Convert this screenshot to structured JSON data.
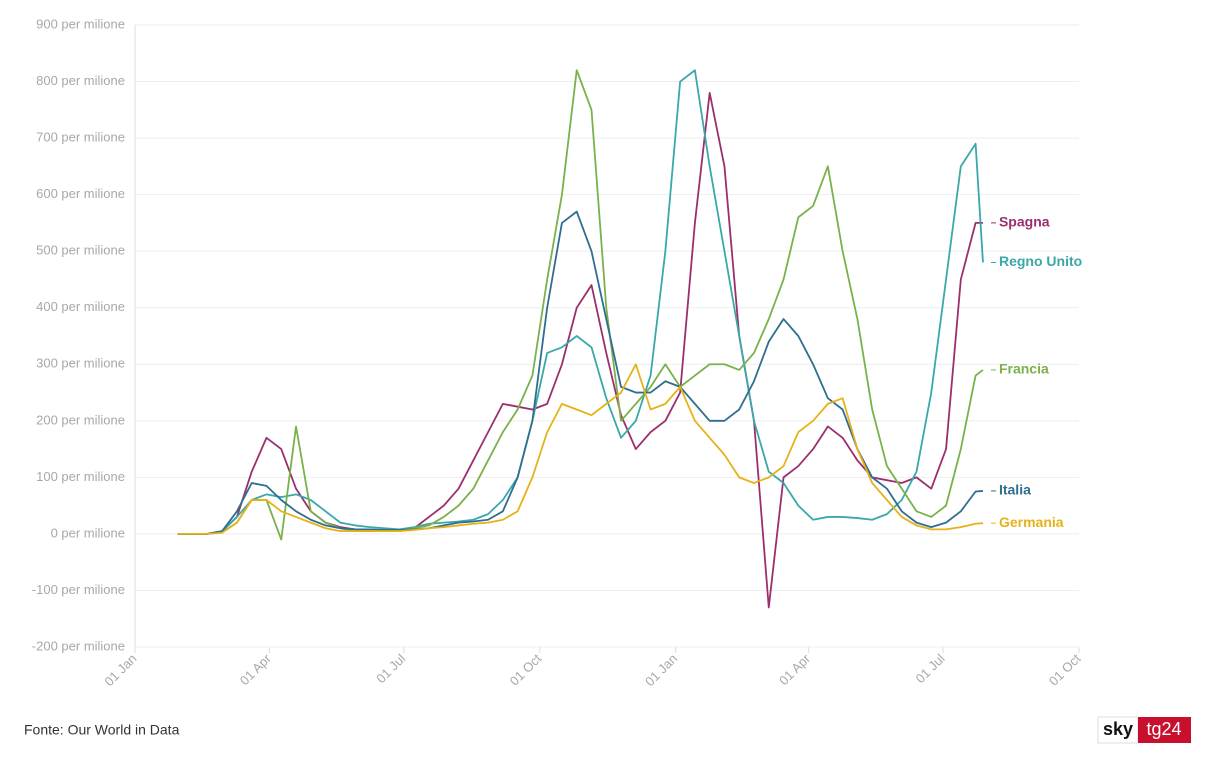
{
  "chart_data": {
    "type": "line",
    "x": [
      29,
      39,
      49,
      59,
      69,
      79,
      89,
      99,
      109,
      119,
      129,
      139,
      149,
      159,
      169,
      179,
      189,
      199,
      209,
      219,
      229,
      239,
      249,
      259,
      269,
      279,
      289,
      299,
      309,
      319,
      329,
      339,
      349,
      359,
      369,
      379,
      389,
      399,
      409,
      419,
      429,
      439,
      449,
      459,
      469,
      479,
      489,
      499,
      509,
      519,
      529,
      539,
      549,
      559,
      569,
      574
    ],
    "xlim": [
      0,
      639
    ],
    "xticks": [
      {
        "value": 0,
        "label": "01 Jan"
      },
      {
        "value": 91,
        "label": "01 Apr"
      },
      {
        "value": 182,
        "label": "01 Jul"
      },
      {
        "value": 274,
        "label": "01 Oct"
      },
      {
        "value": 366,
        "label": "01 Jan"
      },
      {
        "value": 456,
        "label": "01 Apr"
      },
      {
        "value": 547,
        "label": "01 Jul"
      },
      {
        "value": 639,
        "label": "01 Oct"
      }
    ],
    "ylim": [
      -200,
      900
    ],
    "yticks": [
      {
        "value": -200,
        "label": "-200 per milione"
      },
      {
        "value": -100,
        "label": "-100 per milione"
      },
      {
        "value": 0,
        "label": "0 per milione"
      },
      {
        "value": 100,
        "label": "100 per milione"
      },
      {
        "value": 200,
        "label": "200 per milione"
      },
      {
        "value": 300,
        "label": "300 per milione"
      },
      {
        "value": 400,
        "label": "400 per milione"
      },
      {
        "value": 500,
        "label": "500 per milione"
      },
      {
        "value": 600,
        "label": "600 per milione"
      },
      {
        "value": 700,
        "label": "700 per milione"
      },
      {
        "value": 800,
        "label": "800 per milione"
      },
      {
        "value": 900,
        "label": "900 per milione"
      }
    ],
    "grid": true,
    "series": [
      {
        "name": "Spagna",
        "color": "#9b2f6e",
        "values": [
          0,
          0,
          0,
          5,
          30,
          110,
          170,
          150,
          80,
          40,
          20,
          12,
          8,
          5,
          5,
          5,
          10,
          30,
          50,
          80,
          130,
          180,
          230,
          225,
          220,
          230,
          300,
          400,
          440,
          320,
          210,
          150,
          180,
          200,
          250,
          550,
          780,
          650,
          350,
          200,
          -130,
          100,
          120,
          150,
          190,
          170,
          130,
          100,
          95,
          90,
          100,
          80,
          150,
          450,
          550,
          550
        ]
      },
      {
        "name": "Regno Unito",
        "color": "#3aa8a8",
        "values": [
          0,
          0,
          0,
          5,
          30,
          60,
          70,
          65,
          70,
          60,
          40,
          20,
          15,
          12,
          10,
          8,
          12,
          18,
          20,
          22,
          25,
          35,
          60,
          100,
          200,
          320,
          330,
          350,
          330,
          240,
          170,
          200,
          280,
          500,
          800,
          820,
          650,
          500,
          350,
          200,
          110,
          90,
          50,
          25,
          30,
          30,
          28,
          25,
          35,
          60,
          110,
          250,
          450,
          650,
          690,
          480
        ]
      },
      {
        "name": "Francia",
        "color": "#79b14b",
        "values": [
          0,
          0,
          0,
          3,
          20,
          60,
          60,
          -10,
          190,
          40,
          20,
          10,
          5,
          5,
          5,
          5,
          10,
          15,
          30,
          50,
          80,
          130,
          180,
          220,
          280,
          450,
          600,
          820,
          750,
          400,
          200,
          230,
          260,
          300,
          260,
          280,
          300,
          300,
          290,
          320,
          380,
          450,
          560,
          580,
          650,
          500,
          380,
          220,
          120,
          80,
          40,
          30,
          50,
          150,
          280,
          290
        ]
      },
      {
        "name": "Italia",
        "color": "#2f6e8f",
        "values": [
          0,
          0,
          0,
          5,
          40,
          90,
          85,
          60,
          40,
          25,
          15,
          10,
          8,
          8,
          7,
          7,
          8,
          10,
          15,
          20,
          22,
          25,
          40,
          100,
          200,
          400,
          550,
          570,
          500,
          380,
          260,
          250,
          250,
          270,
          260,
          230,
          200,
          200,
          220,
          270,
          340,
          380,
          350,
          300,
          240,
          220,
          150,
          100,
          80,
          40,
          20,
          12,
          20,
          40,
          75,
          76
        ]
      },
      {
        "name": "Germania",
        "color": "#e5b219",
        "values": [
          0,
          0,
          0,
          2,
          20,
          60,
          60,
          40,
          30,
          20,
          10,
          5,
          5,
          5,
          5,
          5,
          7,
          10,
          12,
          15,
          18,
          20,
          25,
          40,
          100,
          180,
          230,
          220,
          210,
          230,
          250,
          300,
          220,
          230,
          260,
          200,
          170,
          140,
          100,
          90,
          100,
          120,
          180,
          200,
          230,
          240,
          150,
          90,
          60,
          30,
          15,
          8,
          8,
          12,
          18,
          19
        ]
      }
    ]
  },
  "footer": {
    "source": "Fonte: Our World in Data",
    "logo_left": "sky",
    "logo_right": "tg24"
  }
}
